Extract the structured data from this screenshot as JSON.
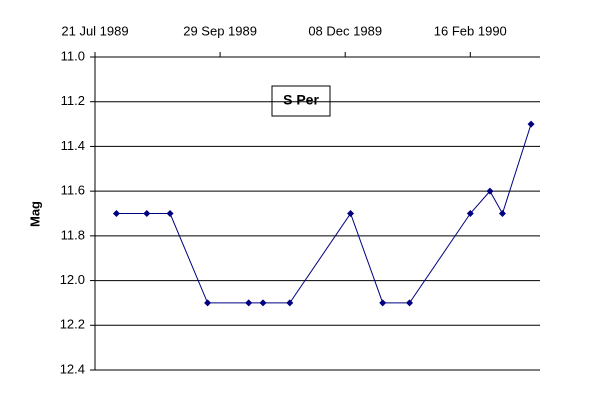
{
  "chart_data": {
    "type": "line",
    "title": "S Per",
    "y_label": "Mag",
    "x": [
      "1989-08-02",
      "1989-08-19",
      "1989-09-01",
      "1989-09-22",
      "1989-10-15",
      "1989-10-23",
      "1989-11-07",
      "1989-12-11",
      "1989-12-29",
      "1990-01-13",
      "1990-02-16",
      "1990-02-27",
      "1990-03-06",
      "1990-03-22"
    ],
    "values": [
      11.7,
      11.7,
      11.7,
      12.1,
      12.1,
      12.1,
      12.1,
      11.7,
      12.1,
      12.1,
      11.7,
      11.6,
      11.7,
      11.3
    ],
    "color": "#000080",
    "xlim": [
      "1989-07-21",
      "1990-03-27"
    ],
    "xticks": [
      {
        "value": "1989-07-21",
        "label": "21 Jul 1989"
      },
      {
        "value": "1989-09-29",
        "label": "29 Sep 1989"
      },
      {
        "value": "1989-12-08",
        "label": "08 Dec 1989"
      },
      {
        "value": "1990-02-16",
        "label": "16 Feb 1990"
      }
    ],
    "ylim": [
      11,
      12.4
    ],
    "y_inverted": true,
    "yticks": [
      {
        "value": 11,
        "label": "11.0"
      },
      11.2,
      11.4,
      11.6,
      11.8,
      {
        "value": 12,
        "label": "12.0"
      },
      12.2,
      12.4
    ],
    "grid": true
  }
}
